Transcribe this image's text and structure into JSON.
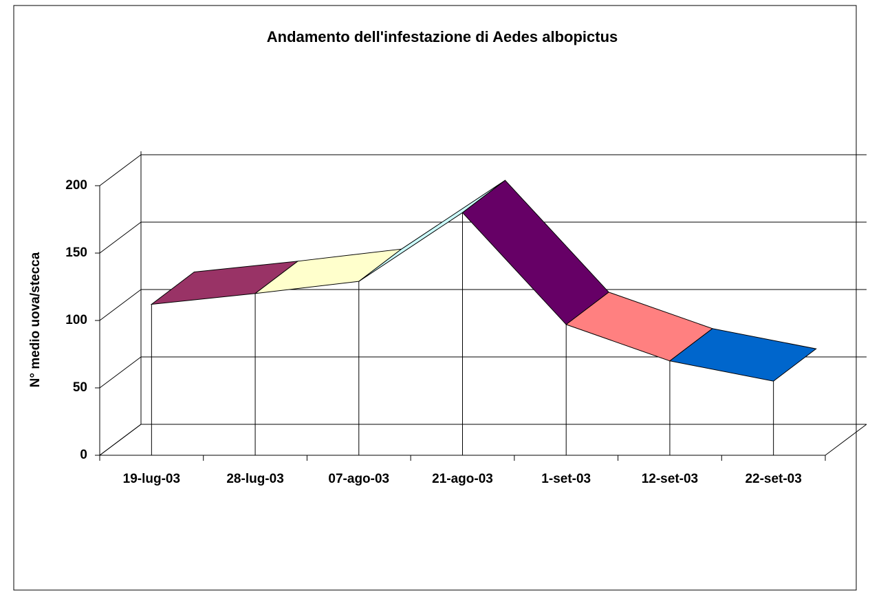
{
  "chart_data": {
    "type": "line3d",
    "title": "Andamento dell'infestazione di Aedes albopictus",
    "y_label": "N° medio uova/stecca",
    "categories": [
      "19-lug-03",
      "28-lug-03",
      "07-ago-03",
      "21-ago-03",
      "1-set-03",
      "12-set-03",
      "22-set-03"
    ],
    "values": [
      112,
      120,
      129,
      180,
      97,
      70,
      55
    ],
    "segment_colors": [
      "#993366",
      "#FFFFCC",
      "#CCFFFF",
      "#660066",
      "#FF8080",
      "#0066CC"
    ],
    "ylim": [
      0,
      200
    ],
    "yticks": [
      0,
      50,
      100,
      150,
      200
    ],
    "grid": true
  }
}
